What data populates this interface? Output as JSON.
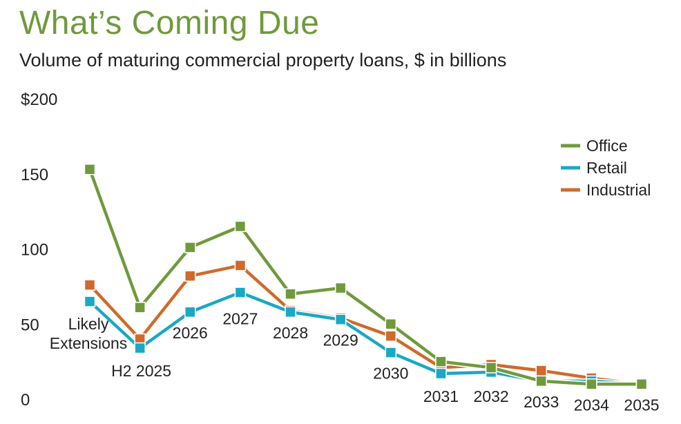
{
  "chart_data": {
    "type": "line",
    "title": "What’s Coming Due",
    "subtitle": "Volume of maturing commercial property loans, $ in billions",
    "y_ticks": [
      "$200",
      "150",
      "100",
      "50",
      "0"
    ],
    "ylim": [
      0,
      200
    ],
    "categories": [
      "Likely Extensions",
      "H2 2025",
      "2026",
      "2027",
      "2028",
      "2029",
      "2030",
      "2031",
      "2032",
      "2033",
      "2034",
      "2035"
    ],
    "series": [
      {
        "name": "Office",
        "color": "#6f9a3c",
        "values": [
          153,
          61,
          101,
          115,
          70,
          74,
          50,
          25,
          21,
          12,
          10,
          10
        ]
      },
      {
        "name": "Retail",
        "color": "#1aa8c4",
        "values": [
          65,
          34,
          58,
          71,
          58,
          53,
          31,
          17,
          18,
          12,
          12,
          10
        ]
      },
      {
        "name": "Industrial",
        "color": "#cf6a2c",
        "values": [
          76,
          40,
          82,
          89,
          59,
          54,
          42,
          21,
          23,
          19,
          14,
          10
        ]
      }
    ],
    "legend_position": "top-right",
    "grid": false
  }
}
